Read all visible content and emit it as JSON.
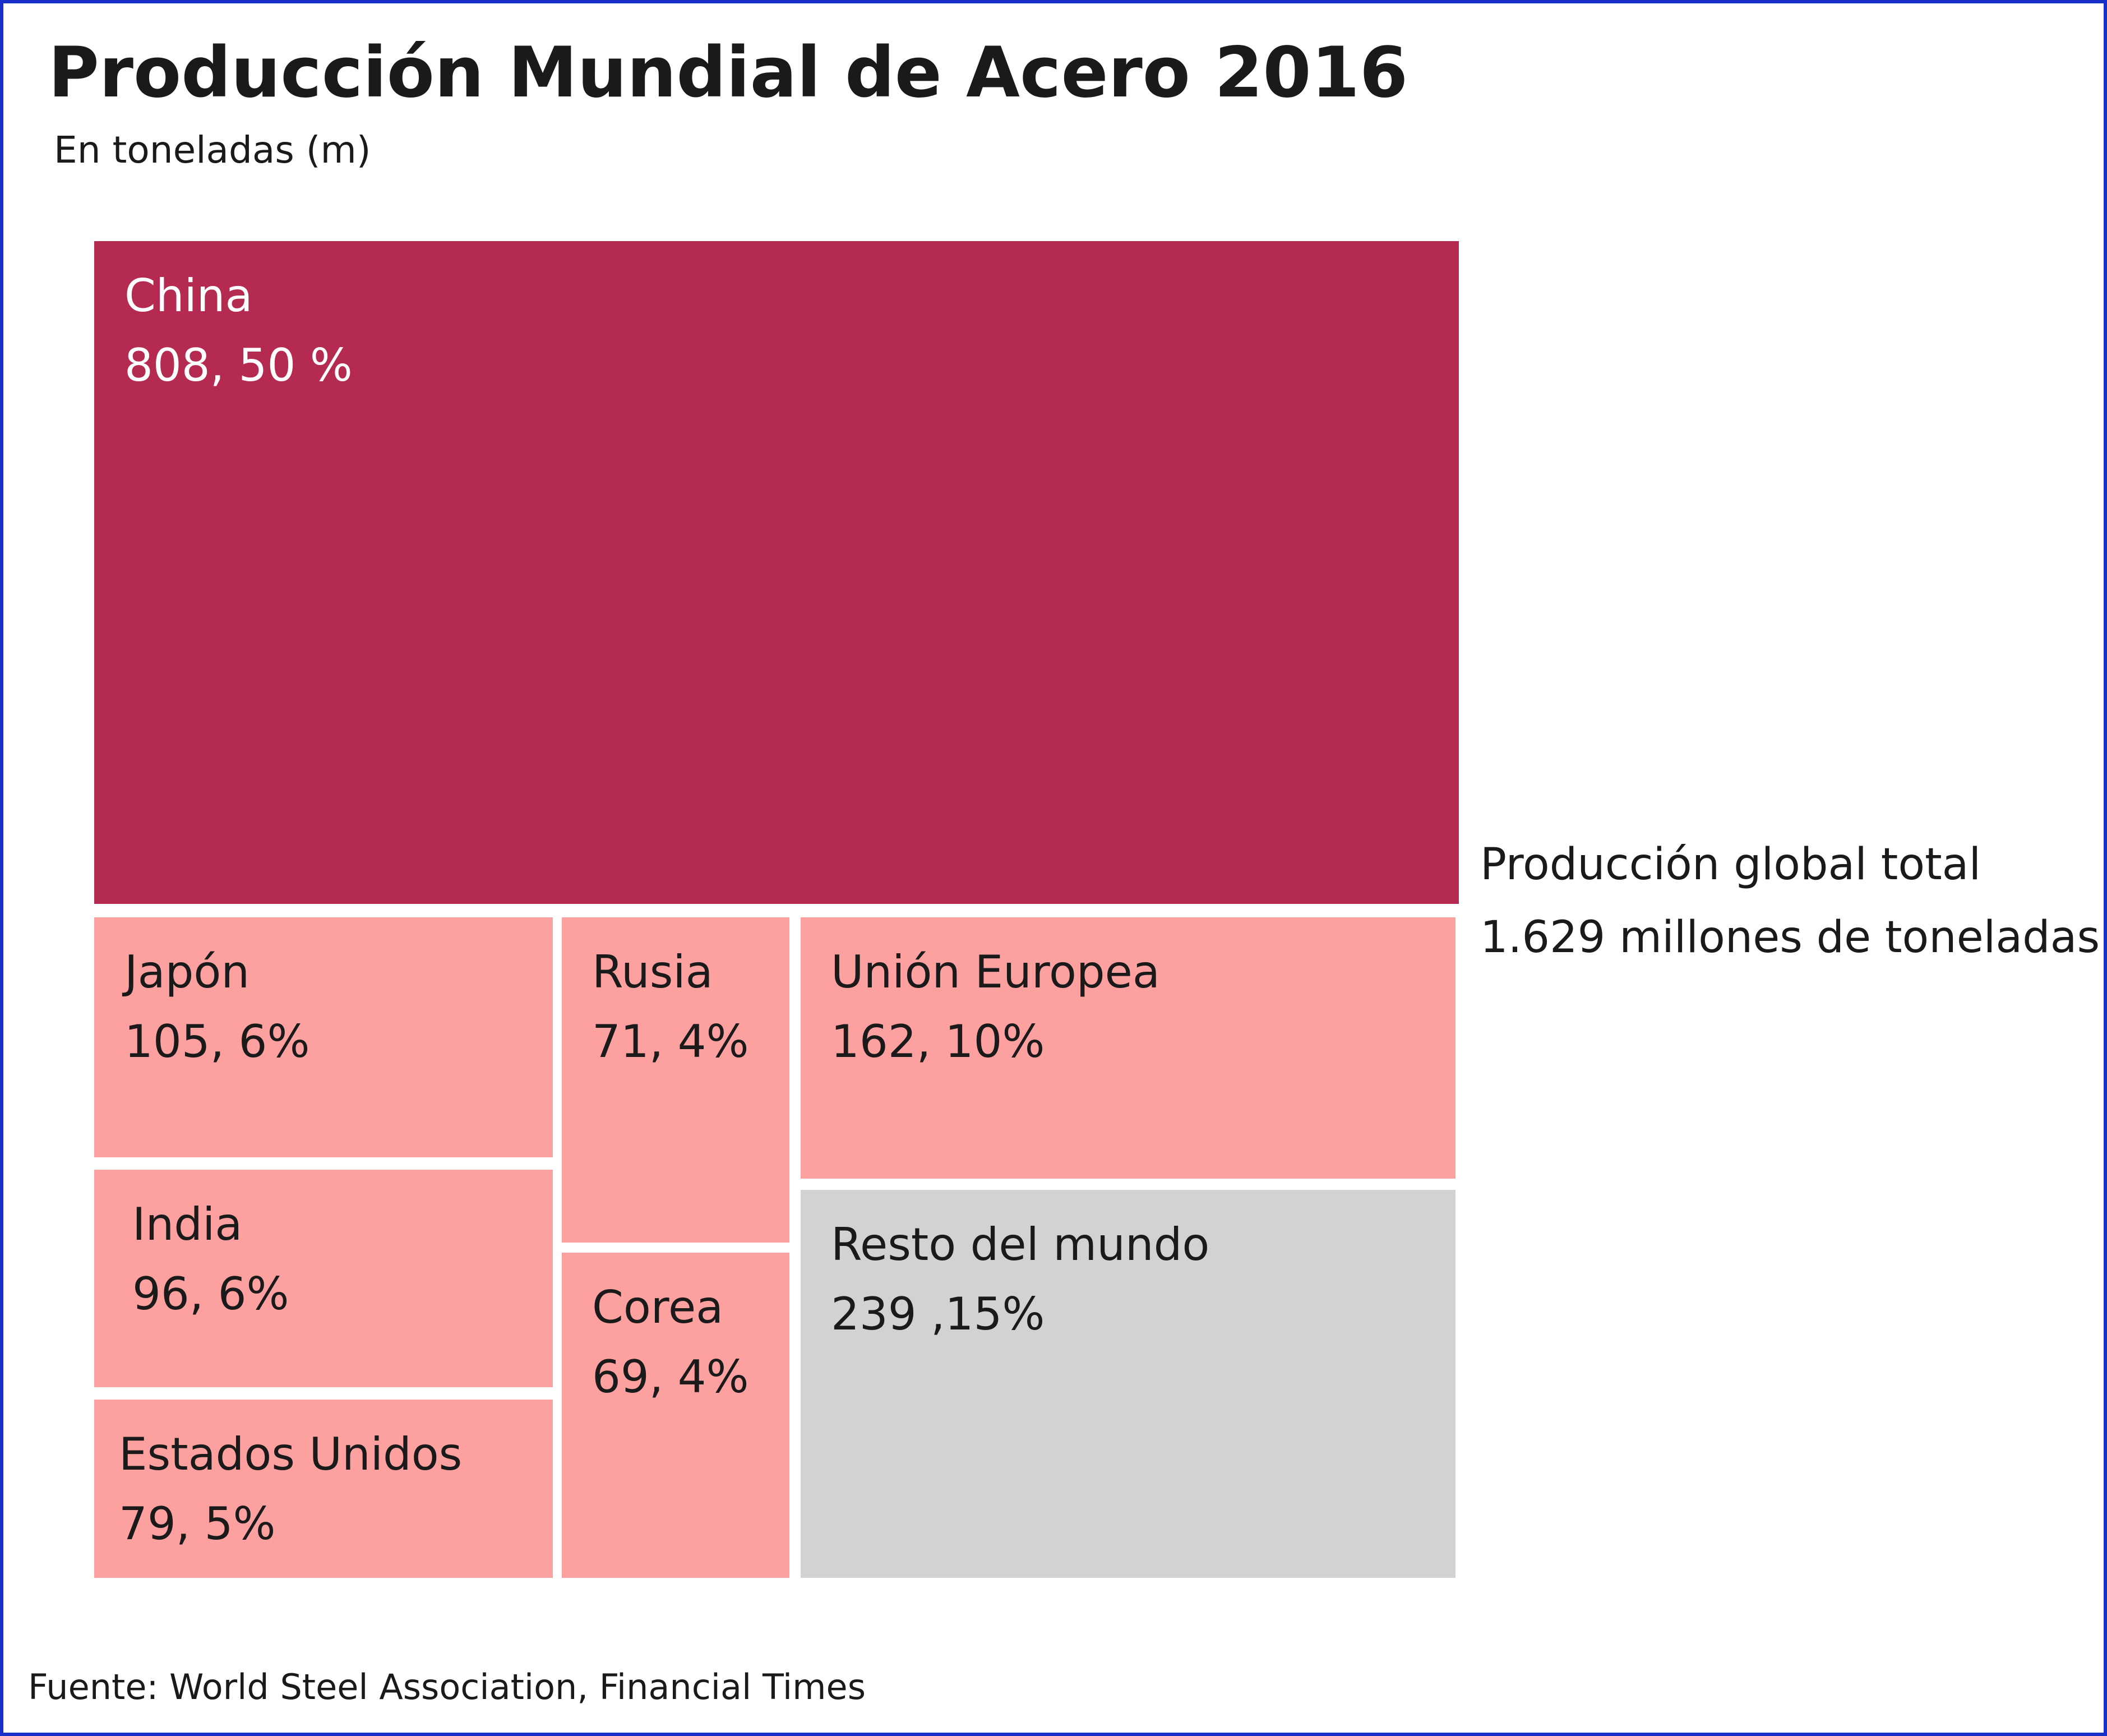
{
  "title": "Producción Mundial de Acero 2016",
  "subtitle": "En toneladas (m)",
  "total": {
    "label": "Producción global total",
    "value": "1.629 millones de toneladas"
  },
  "source": "Fuente: World Steel Association, Financial Times",
  "colors": {
    "frame": "#1630c8",
    "china": "#b52a50",
    "countries": "#fda0a0",
    "rest": "#d1d2d4",
    "text_dark": "#1a1a1a",
    "text_light": "#ffffff"
  },
  "chart_data": {
    "type": "treemap",
    "title": "Producción Mundial de Acero 2016",
    "subtitle": "En toneladas (m)",
    "unit": "millones de toneladas",
    "total": 1629,
    "items": [
      {
        "name": "China",
        "value": 808,
        "percent": 50,
        "label": "808, 50 %",
        "color": "#b52a50"
      },
      {
        "name": "Japón",
        "value": 105,
        "percent": 6,
        "label": "105, 6%",
        "color": "#fda0a0"
      },
      {
        "name": "India",
        "value": 96,
        "percent": 6,
        "label": "96, 6%",
        "color": "#fda0a0"
      },
      {
        "name": "Estados Unidos",
        "value": 79,
        "percent": 5,
        "label": "79, 5%",
        "color": "#fda0a0"
      },
      {
        "name": "Rusia",
        "value": 71,
        "percent": 4,
        "label": "71, 4%",
        "color": "#fda0a0"
      },
      {
        "name": "Corea",
        "value": 69,
        "percent": 4,
        "label": "69, 4%",
        "color": "#fda0a0"
      },
      {
        "name": "Unión Europea",
        "value": 162,
        "percent": 10,
        "label": "162, 10%",
        "color": "#fda0a0"
      },
      {
        "name": "Resto del mundo",
        "value": 239,
        "percent": 15,
        "label": "239 ,15%",
        "color": "#d1d2d4"
      }
    ]
  }
}
